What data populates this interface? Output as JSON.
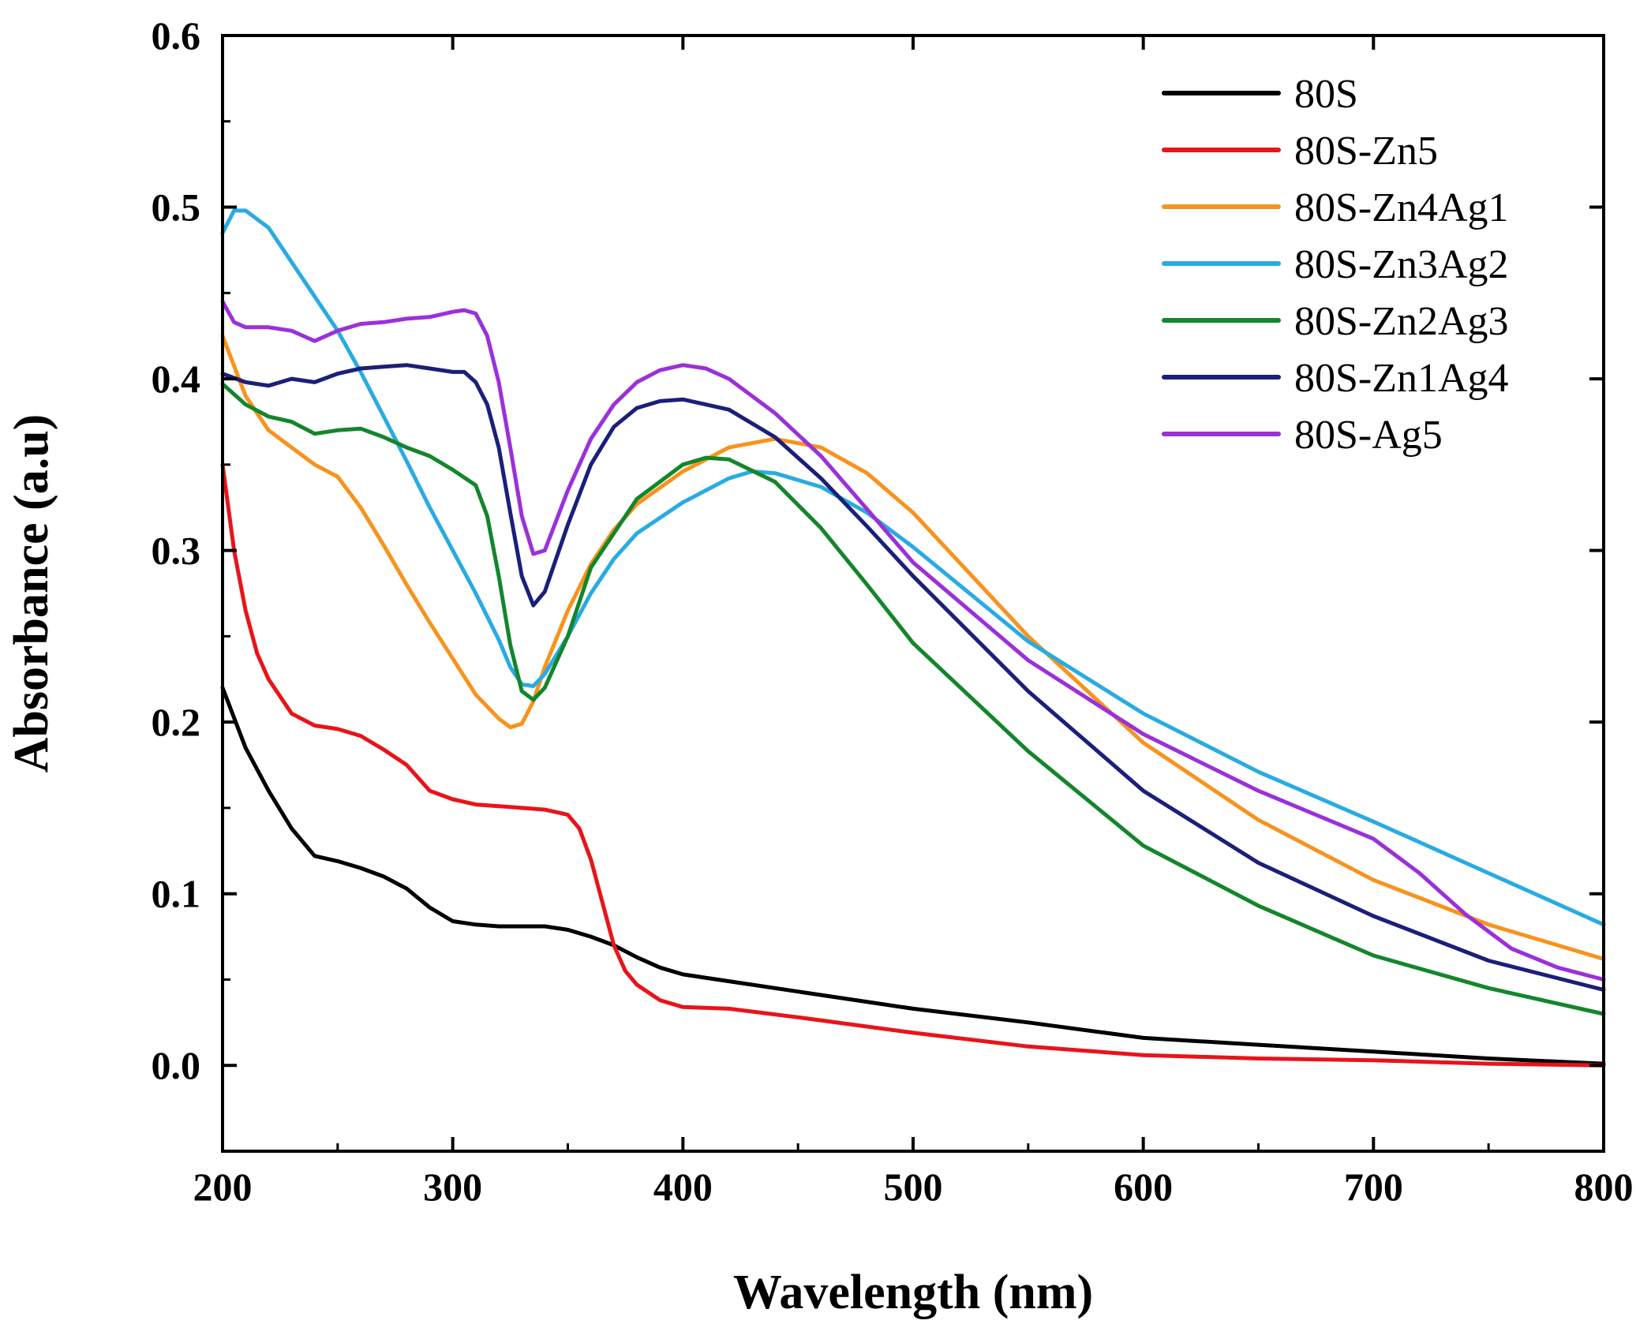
{
  "chart_data": {
    "type": "line",
    "title": "",
    "xlabel": "Wavelength (nm)",
    "ylabel": "Absorbance (a.u)",
    "xlim": [
      200,
      800
    ],
    "ylim": [
      -0.05,
      0.6
    ],
    "xticks": [
      200,
      300,
      400,
      500,
      600,
      700,
      800
    ],
    "xtick_labels": [
      "200",
      "300",
      "400",
      "500",
      "600",
      "700",
      "800"
    ],
    "yticks": [
      0.0,
      0.1,
      0.2,
      0.3,
      0.4,
      0.5,
      0.6
    ],
    "ytick_labels": [
      "0.0",
      "0.1",
      "0.2",
      "0.3",
      "0.4",
      "0.5",
      "0.6"
    ],
    "grid": false,
    "legend_position": "top-right",
    "series": [
      {
        "name": "80S",
        "color": "#000000",
        "x": [
          200,
          210,
          220,
          230,
          240,
          250,
          260,
          270,
          280,
          290,
          300,
          310,
          320,
          330,
          340,
          350,
          360,
          370,
          380,
          390,
          400,
          420,
          450,
          500,
          550,
          600,
          650,
          700,
          750,
          800
        ],
        "y": [
          0.22,
          0.185,
          0.16,
          0.138,
          0.122,
          0.119,
          0.115,
          0.11,
          0.103,
          0.092,
          0.084,
          0.082,
          0.081,
          0.081,
          0.081,
          0.079,
          0.075,
          0.07,
          0.063,
          0.057,
          0.053,
          0.049,
          0.043,
          0.033,
          0.025,
          0.016,
          0.012,
          0.008,
          0.004,
          0.001
        ]
      },
      {
        "name": "80S-Zn5",
        "color": "#e8141a",
        "x": [
          200,
          205,
          210,
          215,
          220,
          230,
          240,
          250,
          260,
          270,
          280,
          290,
          300,
          310,
          320,
          330,
          340,
          350,
          355,
          360,
          365,
          370,
          375,
          380,
          390,
          400,
          420,
          450,
          500,
          550,
          600,
          650,
          700,
          750,
          800
        ],
        "y": [
          0.35,
          0.3,
          0.265,
          0.24,
          0.225,
          0.205,
          0.198,
          0.196,
          0.192,
          0.184,
          0.175,
          0.16,
          0.155,
          0.152,
          0.151,
          0.15,
          0.149,
          0.146,
          0.138,
          0.12,
          0.095,
          0.07,
          0.055,
          0.047,
          0.038,
          0.034,
          0.033,
          0.028,
          0.019,
          0.011,
          0.006,
          0.004,
          0.003,
          0.001,
          0.0
        ]
      },
      {
        "name": "80S-Zn4Ag1",
        "color": "#f7931e",
        "x": [
          200,
          210,
          220,
          230,
          240,
          250,
          260,
          270,
          280,
          290,
          300,
          310,
          320,
          325,
          330,
          335,
          340,
          350,
          360,
          370,
          380,
          400,
          420,
          440,
          460,
          480,
          500,
          550,
          600,
          650,
          700,
          750,
          800
        ],
        "y": [
          0.425,
          0.39,
          0.37,
          0.36,
          0.35,
          0.343,
          0.325,
          0.303,
          0.28,
          0.258,
          0.237,
          0.216,
          0.202,
          0.197,
          0.199,
          0.212,
          0.232,
          0.265,
          0.292,
          0.312,
          0.327,
          0.346,
          0.36,
          0.365,
          0.36,
          0.345,
          0.322,
          0.25,
          0.188,
          0.143,
          0.108,
          0.082,
          0.062
        ]
      },
      {
        "name": "80S-Zn3Ag2",
        "color": "#29abe2",
        "x": [
          200,
          205,
          210,
          220,
          230,
          240,
          250,
          260,
          270,
          280,
          290,
          300,
          310,
          320,
          325,
          330,
          335,
          340,
          350,
          360,
          370,
          380,
          400,
          420,
          430,
          440,
          460,
          480,
          500,
          550,
          600,
          650,
          700,
          750,
          800
        ],
        "y": [
          0.485,
          0.498,
          0.498,
          0.488,
          0.468,
          0.448,
          0.428,
          0.404,
          0.378,
          0.352,
          0.325,
          0.3,
          0.275,
          0.248,
          0.232,
          0.222,
          0.221,
          0.228,
          0.25,
          0.275,
          0.295,
          0.31,
          0.328,
          0.342,
          0.346,
          0.345,
          0.337,
          0.322,
          0.302,
          0.247,
          0.205,
          0.171,
          0.142,
          0.112,
          0.082
        ]
      },
      {
        "name": "80S-Zn2Ag3",
        "color": "#13862b",
        "x": [
          200,
          210,
          220,
          230,
          240,
          250,
          260,
          270,
          280,
          290,
          300,
          310,
          315,
          320,
          325,
          330,
          335,
          340,
          350,
          360,
          380,
          400,
          410,
          420,
          440,
          460,
          480,
          500,
          550,
          600,
          650,
          700,
          750,
          800
        ],
        "y": [
          0.397,
          0.385,
          0.378,
          0.375,
          0.368,
          0.37,
          0.371,
          0.366,
          0.36,
          0.355,
          0.347,
          0.338,
          0.32,
          0.285,
          0.245,
          0.218,
          0.213,
          0.22,
          0.25,
          0.29,
          0.33,
          0.35,
          0.354,
          0.353,
          0.34,
          0.313,
          0.28,
          0.246,
          0.183,
          0.128,
          0.093,
          0.064,
          0.045,
          0.03
        ]
      },
      {
        "name": "80S-Zn1Ag4",
        "color": "#1b1f7a",
        "x": [
          200,
          210,
          220,
          230,
          240,
          250,
          260,
          270,
          280,
          290,
          300,
          305,
          310,
          315,
          320,
          325,
          330,
          335,
          340,
          350,
          360,
          370,
          380,
          390,
          400,
          420,
          440,
          460,
          480,
          500,
          550,
          600,
          650,
          700,
          750,
          800
        ],
        "y": [
          0.403,
          0.398,
          0.396,
          0.4,
          0.398,
          0.403,
          0.406,
          0.407,
          0.408,
          0.406,
          0.404,
          0.404,
          0.398,
          0.385,
          0.36,
          0.322,
          0.285,
          0.268,
          0.276,
          0.315,
          0.35,
          0.372,
          0.383,
          0.387,
          0.388,
          0.382,
          0.366,
          0.342,
          0.314,
          0.285,
          0.218,
          0.16,
          0.118,
          0.087,
          0.061,
          0.044
        ]
      },
      {
        "name": "80S-Ag5",
        "color": "#9b30d9",
        "x": [
          200,
          205,
          210,
          220,
          230,
          240,
          250,
          260,
          270,
          280,
          290,
          300,
          305,
          310,
          315,
          320,
          325,
          330,
          335,
          340,
          350,
          360,
          370,
          380,
          390,
          400,
          410,
          420,
          440,
          460,
          480,
          500,
          550,
          600,
          650,
          700,
          720,
          740,
          760,
          780,
          800
        ],
        "y": [
          0.445,
          0.433,
          0.43,
          0.43,
          0.428,
          0.422,
          0.428,
          0.432,
          0.433,
          0.435,
          0.436,
          0.439,
          0.44,
          0.438,
          0.425,
          0.398,
          0.36,
          0.32,
          0.298,
          0.3,
          0.335,
          0.365,
          0.385,
          0.398,
          0.405,
          0.408,
          0.406,
          0.4,
          0.38,
          0.355,
          0.324,
          0.293,
          0.236,
          0.193,
          0.16,
          0.132,
          0.112,
          0.088,
          0.068,
          0.057,
          0.05
        ]
      }
    ]
  }
}
